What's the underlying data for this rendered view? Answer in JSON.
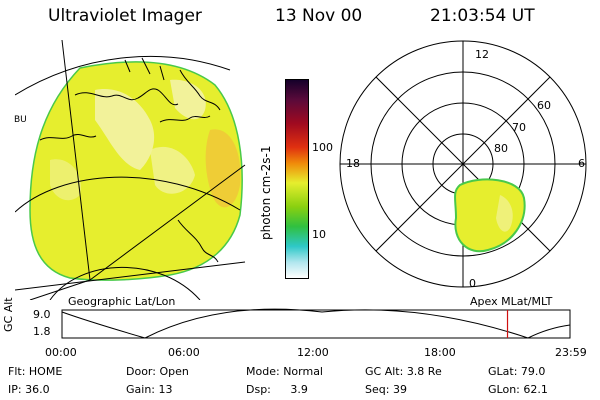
{
  "header": {
    "title": "Ultraviolet Imager",
    "date": "13 Nov 00",
    "time": "21:03:54 UT"
  },
  "colorbar": {
    "label_html": "photon cm<sup>-2</sup>s<sup>-1</sup>",
    "label_plain": "photon cm-2s-1",
    "tick_100": "100",
    "tick_10": "10"
  },
  "left_panel": {
    "caption": "Geographic Lat/Lon",
    "side_label": "BU"
  },
  "right_panel": {
    "caption": "Apex MLat/MLT",
    "mlt_12": "12",
    "mlt_18": "18",
    "mlt_6": "6",
    "mlt_0": "0",
    "lat_60": "60",
    "lat_70": "70",
    "lat_80": "80"
  },
  "altitude_plot": {
    "ylabel": "GC Alt",
    "y_top": "9.0",
    "y_bottom": "1.8",
    "x_ticks": [
      "00:00",
      "06:00",
      "12:00",
      "18:00",
      "23:59"
    ],
    "current_time_fraction": 0.877
  },
  "status": {
    "flt_label": "Flt:",
    "flt_value": "HOME",
    "ip_label": "IP:",
    "ip_value": "36.0",
    "door_label": "Door:",
    "door_value": "Open",
    "gain_label": "Gain:",
    "gain_value": "13",
    "mode_label": "Mode:",
    "mode_value": "Normal",
    "dsp_label": "Dsp:",
    "dsp_value": "3.9",
    "gcalt_label": "GC Alt:",
    "gcalt_value": "3.8 Re",
    "seq_label": "Seq:",
    "seq_value": "39",
    "glat_label": "GLat:",
    "glat_value": "79.0",
    "glon_label": "GLon:",
    "glon_value": "62.1"
  },
  "colors": {
    "aurora_yellow": "#e6ee2e",
    "aurora_pale": "#f2f29a",
    "aurora_orange": "#f2c23a",
    "edge_green": "#49c94a",
    "marker_red": "#d01010"
  }
}
